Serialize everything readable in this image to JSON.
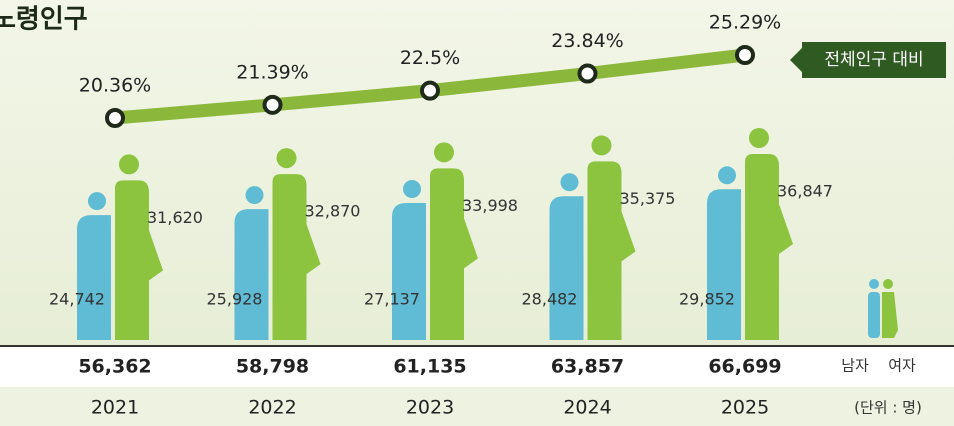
{
  "chart_data": [
    {
      "type": "line",
      "title": "노령인구",
      "series": [
        {
          "name": "전체인구 대비",
          "color": "#8bb73b",
          "marker_color": "#1f2a1a",
          "values": [
            20.36,
            21.39,
            22.5,
            23.84,
            25.29
          ],
          "value_labels": [
            "20.36%",
            "21.39%",
            "22.5%",
            "23.84%",
            "25.29%"
          ]
        }
      ]
    },
    {
      "type": "bar",
      "categories": [
        "2021",
        "2022",
        "2023",
        "2024",
        "2025"
      ],
      "series": [
        {
          "name": "남자",
          "color": "#5fbcd4",
          "values": [
            24742,
            25928,
            27137,
            28482,
            29852
          ],
          "value_labels": [
            "24,742",
            "25,928",
            "27,137",
            "28,482",
            "29,852"
          ]
        },
        {
          "name": "여자",
          "color": "#8cc43f",
          "values": [
            31620,
            32870,
            33998,
            35375,
            36847
          ],
          "value_labels": [
            "31,620",
            "32,870",
            "33,998",
            "35,375",
            "36,847"
          ]
        }
      ],
      "totals": [
        56362,
        58798,
        61135,
        63857,
        66699
      ],
      "total_labels": [
        "56,362",
        "58,798",
        "61,135",
        "63,857",
        "66,699"
      ],
      "unit": "(단위 : 명)"
    }
  ]
}
